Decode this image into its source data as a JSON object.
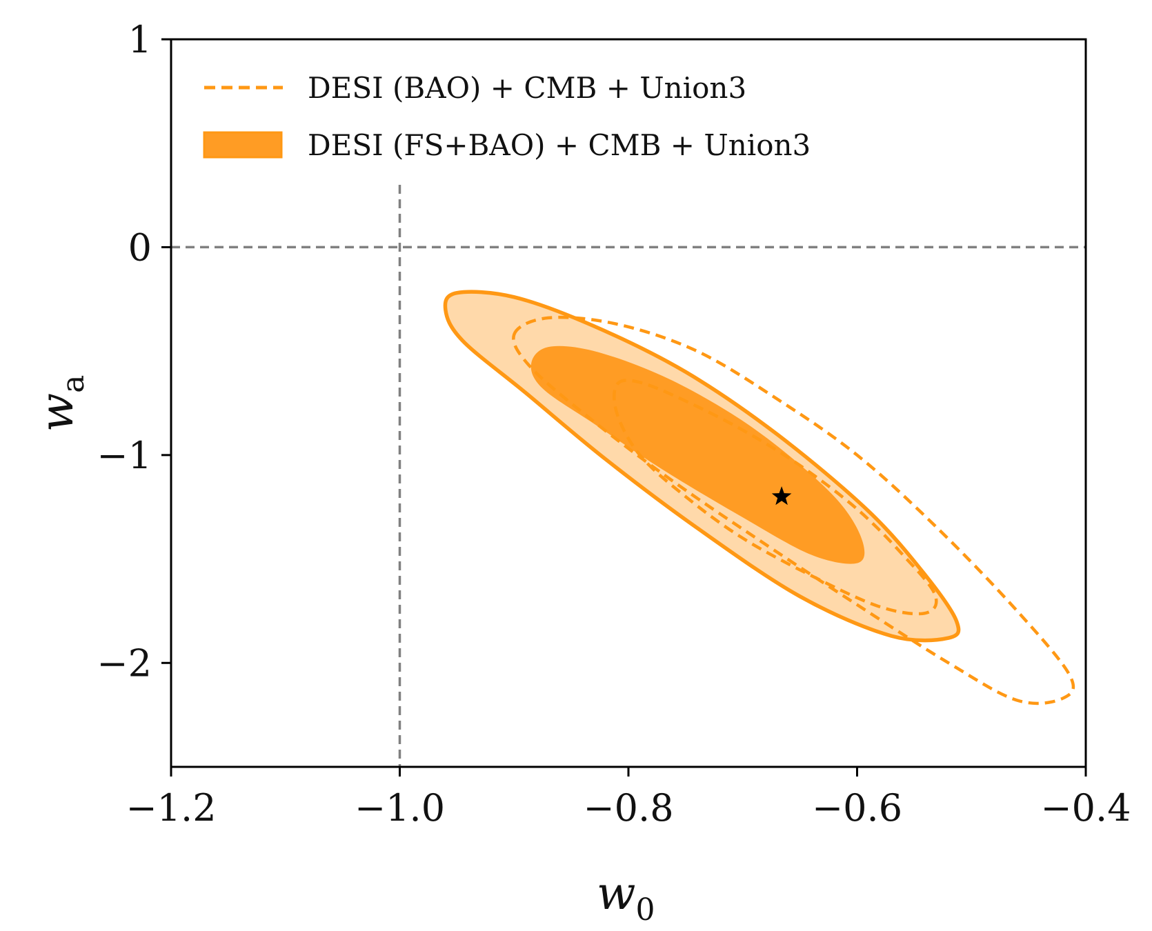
{
  "chart_data": {
    "type": "contour",
    "xlabel": "w",
    "xlabel_sub": "0",
    "ylabel": "w",
    "ylabel_sub": "a",
    "xlim": [
      -1.2,
      -0.4
    ],
    "ylim": [
      -2.5,
      1
    ],
    "xticks": [
      {
        "value": -1.2,
        "label": "−1.2"
      },
      {
        "value": -1.0,
        "label": "−1.0"
      },
      {
        "value": -0.8,
        "label": "−0.8"
      },
      {
        "value": -0.6,
        "label": "−0.6"
      },
      {
        "value": -0.4,
        "label": "−0.4"
      }
    ],
    "yticks": [
      {
        "value": 1,
        "label": "1"
      },
      {
        "value": 0,
        "label": "0"
      },
      {
        "value": -1,
        "label": "−1"
      },
      {
        "value": -2,
        "label": "−2"
      }
    ],
    "reference_lines": [
      {
        "orientation": "vertical",
        "value": -1.0,
        "from": -2.5,
        "to": 0.3,
        "color": "#808080"
      },
      {
        "orientation": "horizontal",
        "value": 0,
        "from": -1.2,
        "to": -0.4,
        "color": "#808080"
      }
    ],
    "colors": {
      "orange": "#ff9c24",
      "orange_light": "#ffd9aa",
      "orange_line": "#ff9814",
      "gray": "#808080",
      "axis": "#000000"
    },
    "series": [
      {
        "name": "DESI (BAO) + CMB + Union3",
        "style": "dashed",
        "contours": [
          {
            "level": "68%",
            "points": [
              [
                -0.81,
                -0.66
              ],
              [
                -0.79,
                -0.65
              ],
              [
                -0.75,
                -0.74
              ],
              [
                -0.7,
                -0.88
              ],
              [
                -0.65,
                -1.05
              ],
              [
                -0.6,
                -1.26
              ],
              [
                -0.56,
                -1.48
              ],
              [
                -0.532,
                -1.67
              ],
              [
                -0.54,
                -1.76
              ],
              [
                -0.58,
                -1.73
              ],
              [
                -0.64,
                -1.58
              ],
              [
                -0.7,
                -1.4
              ],
              [
                -0.75,
                -1.2
              ],
              [
                -0.79,
                -1.0
              ],
              [
                -0.81,
                -0.8
              ]
            ]
          },
          {
            "level": "95%",
            "points": [
              [
                -0.9,
                -0.42
              ],
              [
                -0.87,
                -0.34
              ],
              [
                -0.81,
                -0.37
              ],
              [
                -0.74,
                -0.5
              ],
              [
                -0.67,
                -0.73
              ],
              [
                -0.6,
                -1.0
              ],
              [
                -0.53,
                -1.35
              ],
              [
                -0.46,
                -1.75
              ],
              [
                -0.414,
                -2.06
              ],
              [
                -0.42,
                -2.17
              ],
              [
                -0.46,
                -2.18
              ],
              [
                -0.52,
                -2.0
              ],
              [
                -0.6,
                -1.72
              ],
              [
                -0.68,
                -1.43
              ],
              [
                -0.76,
                -1.13
              ],
              [
                -0.83,
                -0.84
              ],
              [
                -0.885,
                -0.58
              ]
            ]
          }
        ]
      },
      {
        "name": "DESI (FS+BAO) + CMB + Union3",
        "style": "filled",
        "contours": [
          {
            "level": "68%",
            "points": [
              [
                -0.885,
                -0.56
              ],
              [
                -0.87,
                -0.48
              ],
              [
                -0.83,
                -0.5
              ],
              [
                -0.77,
                -0.62
              ],
              [
                -0.71,
                -0.8
              ],
              [
                -0.66,
                -1.0
              ],
              [
                -0.615,
                -1.23
              ],
              [
                -0.595,
                -1.42
              ],
              [
                -0.6,
                -1.52
              ],
              [
                -0.64,
                -1.48
              ],
              [
                -0.7,
                -1.3
              ],
              [
                -0.77,
                -1.07
              ],
              [
                -0.83,
                -0.85
              ],
              [
                -0.875,
                -0.68
              ]
            ]
          },
          {
            "level": "95%",
            "points": [
              [
                -0.96,
                -0.3
              ],
              [
                -0.95,
                -0.22
              ],
              [
                -0.9,
                -0.24
              ],
              [
                -0.83,
                -0.38
              ],
              [
                -0.75,
                -0.6
              ],
              [
                -0.67,
                -0.9
              ],
              [
                -0.59,
                -1.27
              ],
              [
                -0.54,
                -1.58
              ],
              [
                -0.513,
                -1.8
              ],
              [
                -0.52,
                -1.88
              ],
              [
                -0.57,
                -1.87
              ],
              [
                -0.65,
                -1.68
              ],
              [
                -0.74,
                -1.35
              ],
              [
                -0.82,
                -1.02
              ],
              [
                -0.89,
                -0.7
              ],
              [
                -0.945,
                -0.45
              ]
            ]
          }
        ]
      }
    ],
    "best_fit": {
      "x": -0.666,
      "y": -1.2,
      "marker": "star"
    },
    "legend": {
      "position": "top-left",
      "entries": [
        {
          "label": "DESI (BAO) + CMB + Union3",
          "style": "dashed"
        },
        {
          "label": "DESI (FS+BAO) + CMB + Union3",
          "style": "filled"
        }
      ]
    }
  }
}
